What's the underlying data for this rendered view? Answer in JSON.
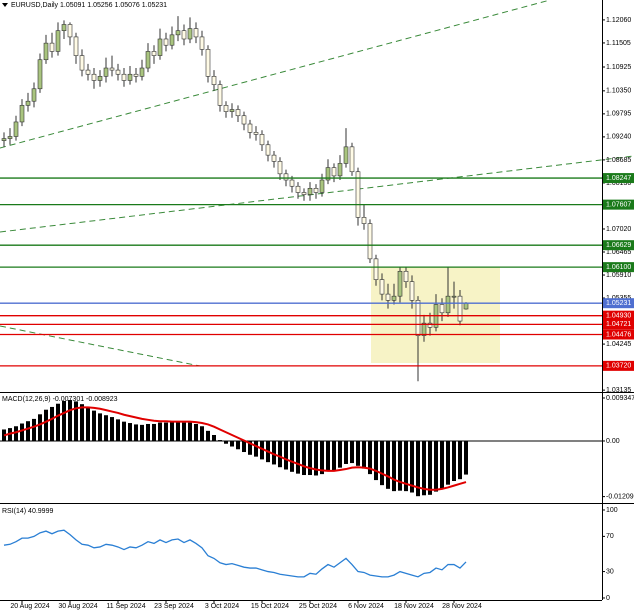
{
  "chart_data": [
    {
      "type": "candlestick",
      "title": "EURUSD,Daily  1.05091 1.05256 1.05076 1.05231",
      "categories": [
        null,
        null,
        null,
        "20 Aug 2024",
        null,
        null,
        null,
        null,
        null,
        null,
        null,
        "30 Aug 2024",
        null,
        null,
        null,
        null,
        null,
        null,
        null,
        "11 Sep 2024",
        null,
        null,
        null,
        null,
        null,
        null,
        null,
        "23 Sep 2024",
        null,
        null,
        null,
        null,
        null,
        null,
        null,
        "3 Oct 2024",
        null,
        null,
        null,
        null,
        null,
        null,
        null,
        "15 Oct 2024",
        null,
        null,
        null,
        null,
        null,
        null,
        null,
        "25 Oct 2024",
        null,
        null,
        null,
        null,
        null,
        null,
        null,
        "6 Nov 2024",
        null,
        null,
        null,
        null,
        null,
        null,
        null,
        "18 Nov 2024",
        null,
        null,
        null,
        null,
        null,
        null,
        null,
        "28 Nov 2024",
        null,
        null
      ],
      "open": [
        1.0915,
        1.092,
        1.0925,
        1.096,
        1.1,
        1.101,
        1.104,
        1.111,
        1.115,
        1.113,
        1.118,
        1.1195,
        1.1165,
        1.112,
        1.1085,
        1.1075,
        1.106,
        1.107,
        1.109,
        1.1085,
        1.1075,
        1.106,
        1.1075,
        1.107,
        1.109,
        1.113,
        1.112,
        1.116,
        1.1145,
        1.117,
        1.118,
        1.116,
        1.1185,
        1.1165,
        1.1135,
        1.107,
        1.105,
        1.1,
        1.0985,
        1.099,
        1.0975,
        1.0955,
        1.0935,
        1.093,
        1.0905,
        1.088,
        1.0865,
        1.0835,
        1.082,
        1.0805,
        1.079,
        1.0785,
        1.08,
        1.079,
        1.082,
        1.085,
        1.083,
        1.086,
        1.09,
        1.084,
        1.073,
        1.0715,
        1.063,
        1.058,
        1.0545,
        1.053,
        1.054,
        1.06,
        1.0575,
        1.053,
        1.0445,
        1.0475,
        1.0465,
        1.052,
        1.05,
        1.054,
        1.054,
        1.05091
      ],
      "high": [
        1.0935,
        1.0945,
        1.0975,
        1.1015,
        1.103,
        1.1055,
        1.1125,
        1.117,
        1.1175,
        1.12,
        1.1205,
        1.12,
        1.1175,
        1.1135,
        1.11,
        1.109,
        1.1085,
        1.1115,
        1.112,
        1.11,
        1.109,
        1.1095,
        1.109,
        1.111,
        1.115,
        1.1145,
        1.1185,
        1.1175,
        1.119,
        1.1215,
        1.1195,
        1.1212,
        1.12,
        1.118,
        1.1145,
        1.1085,
        1.106,
        1.101,
        1.1005,
        1.1,
        1.0985,
        1.0965,
        1.095,
        1.094,
        1.0915,
        1.089,
        1.0875,
        1.0845,
        1.083,
        1.0815,
        1.08,
        1.0815,
        1.081,
        1.0835,
        1.087,
        1.086,
        1.088,
        1.0945,
        1.091,
        1.085,
        1.076,
        1.0725,
        1.064,
        1.0595,
        1.057,
        1.057,
        1.061,
        1.061,
        1.059,
        1.054,
        1.0495,
        1.05,
        1.0545,
        1.0535,
        1.061,
        1.0575,
        1.0555,
        1.05256
      ],
      "low": [
        1.09,
        1.0905,
        1.0915,
        1.095,
        1.0985,
        1.0995,
        1.103,
        1.11,
        1.1115,
        1.112,
        1.116,
        1.1145,
        1.11,
        1.107,
        1.106,
        1.104,
        1.1045,
        1.1055,
        1.107,
        1.106,
        1.1045,
        1.105,
        1.1055,
        1.106,
        1.108,
        1.11,
        1.111,
        1.113,
        1.1135,
        1.1155,
        1.1145,
        1.115,
        1.115,
        1.112,
        1.1055,
        1.1035,
        1.0985,
        1.097,
        1.097,
        1.096,
        1.094,
        1.092,
        1.0915,
        1.089,
        1.0865,
        1.085,
        1.082,
        1.0805,
        1.079,
        1.0775,
        1.077,
        1.077,
        1.0775,
        1.078,
        1.081,
        1.0815,
        1.082,
        1.085,
        1.083,
        1.071,
        1.07,
        1.062,
        1.0565,
        1.053,
        1.051,
        1.052,
        1.0525,
        1.056,
        1.051,
        1.0335,
        1.043,
        1.0445,
        1.0455,
        1.048,
        1.049,
        1.051,
        1.047,
        1.05076
      ],
      "close": [
        1.092,
        1.0925,
        1.096,
        1.1,
        1.101,
        1.104,
        1.111,
        1.115,
        1.113,
        1.118,
        1.1195,
        1.1165,
        1.112,
        1.1085,
        1.1075,
        1.106,
        1.107,
        1.109,
        1.1085,
        1.1075,
        1.106,
        1.1075,
        1.107,
        1.109,
        1.113,
        1.112,
        1.116,
        1.1145,
        1.117,
        1.118,
        1.116,
        1.1185,
        1.1165,
        1.1135,
        1.107,
        1.105,
        1.1,
        1.0985,
        1.099,
        1.0975,
        1.0955,
        1.0935,
        1.093,
        1.0905,
        1.088,
        1.0865,
        1.0835,
        1.082,
        1.0805,
        1.079,
        1.0785,
        1.08,
        1.079,
        1.082,
        1.085,
        1.083,
        1.086,
        1.09,
        1.084,
        1.073,
        1.0715,
        1.063,
        1.058,
        1.0545,
        1.053,
        1.054,
        1.06,
        1.0575,
        1.053,
        1.0445,
        1.0475,
        1.0465,
        1.052,
        1.05,
        1.054,
        1.054,
        1.048,
        1.05231
      ],
      "up_color": "#a9c47f",
      "down_color": "#fffbe6",
      "outline_color": "#333333",
      "ylim": [
        1.0309,
        1.1254
      ],
      "yticks": [
        {
          "value": 1.03135,
          "label": "1.03135"
        },
        {
          "value": 1.04245,
          "label": "1.04245"
        },
        {
          "value": 1.05355,
          "label": "1.05355"
        },
        {
          "value": 1.0591,
          "label": "1.05910"
        },
        {
          "value": 1.06465,
          "label": "1.06465"
        },
        {
          "value": 1.0702,
          "label": "1.07020"
        },
        {
          "value": 1.0813,
          "label": "1.08130"
        },
        {
          "value": 1.08685,
          "label": "1.08685"
        },
        {
          "value": 1.0924,
          "label": "1.09240"
        },
        {
          "value": 1.09795,
          "label": "1.09795"
        },
        {
          "value": 1.1035,
          "label": "1.10350"
        },
        {
          "value": 1.10925,
          "label": "1.10925"
        },
        {
          "value": 1.11505,
          "label": "1.11505"
        },
        {
          "value": 1.1206,
          "label": "1.12060"
        }
      ],
      "levels": [
        {
          "value": 1.08247,
          "color": "#1a7a1a"
        },
        {
          "value": 1.07607,
          "color": "#1a7a1a"
        },
        {
          "value": 1.06629,
          "color": "#1a7a1a"
        },
        {
          "value": 1.061,
          "label": "1.06100",
          "color": "#1a7a1a"
        },
        {
          "value": 1.05231,
          "color": "#4f6fd0"
        },
        {
          "value": 1.0493,
          "label": "1.04930",
          "color": "#e00000"
        },
        {
          "value": 1.04721,
          "color": "#e00000"
        },
        {
          "value": 1.04476,
          "color": "#e00000"
        },
        {
          "value": 1.0372,
          "label": "1.03720",
          "color": "#e00000"
        }
      ]
    },
    {
      "type": "macd",
      "title": "MACD(12,26,9) -0.007301 -0.008923",
      "values": [
        0.0025,
        0.0028,
        0.0032,
        0.0038,
        0.0043,
        0.0048,
        0.0058,
        0.0068,
        0.0074,
        0.0081,
        0.0087,
        0.0089,
        0.0086,
        0.008,
        0.0073,
        0.0066,
        0.006,
        0.0056,
        0.0052,
        0.0047,
        0.0042,
        0.0039,
        0.0036,
        0.0035,
        0.0037,
        0.0037,
        0.004,
        0.004,
        0.0041,
        0.0042,
        0.004,
        0.004,
        0.0037,
        0.0032,
        0.0022,
        0.0013,
        0.0002,
        -0.0006,
        -0.0012,
        -0.0018,
        -0.0024,
        -0.003,
        -0.0034,
        -0.004,
        -0.0046,
        -0.0051,
        -0.0057,
        -0.0062,
        -0.0067,
        -0.0071,
        -0.0074,
        -0.0074,
        -0.0075,
        -0.0072,
        -0.0066,
        -0.0064,
        -0.0058,
        -0.005,
        -0.0048,
        -0.0054,
        -0.006,
        -0.0072,
        -0.0085,
        -0.0096,
        -0.0104,
        -0.0109,
        -0.0108,
        -0.0109,
        -0.0112,
        -0.012,
        -0.0118,
        -0.0117,
        -0.011,
        -0.0104,
        -0.0095,
        -0.0087,
        -0.0083,
        -0.007301
      ],
      "signal": [
        0.0012,
        0.0016,
        0.0019,
        0.0023,
        0.0027,
        0.0031,
        0.0036,
        0.0042,
        0.0048,
        0.0055,
        0.0061,
        0.0067,
        0.0071,
        0.0073,
        0.0073,
        0.0072,
        0.007,
        0.0067,
        0.0064,
        0.0061,
        0.0057,
        0.0054,
        0.0051,
        0.0048,
        0.0046,
        0.0044,
        0.0043,
        0.0043,
        0.0042,
        0.0042,
        0.0042,
        0.0042,
        0.0041,
        0.0039,
        0.0036,
        0.0031,
        0.0025,
        0.0019,
        0.0013,
        0.0007,
        0.0001,
        -0.0005,
        -0.0011,
        -0.0017,
        -0.0023,
        -0.0029,
        -0.0034,
        -0.004,
        -0.0045,
        -0.005,
        -0.0055,
        -0.0059,
        -0.0062,
        -0.0064,
        -0.0065,
        -0.0065,
        -0.0063,
        -0.0061,
        -0.0058,
        -0.0057,
        -0.0058,
        -0.006,
        -0.0065,
        -0.0071,
        -0.0077,
        -0.0084,
        -0.0089,
        -0.0093,
        -0.0097,
        -0.0101,
        -0.0104,
        -0.0106,
        -0.0106,
        -0.0104,
        -0.0101,
        -0.0097,
        -0.0093,
        -0.008923
      ],
      "color": "#000000",
      "signal_color": "#e00000",
      "ylim": [
        -0.01348,
        0.01043
      ],
      "yticks": [
        -0.01209,
        {
          "value": 0,
          "label": "0.00"
        },
        0.009347
      ]
    },
    {
      "type": "line",
      "title": "RSI(14) 40.9999",
      "values": [
        60,
        61,
        64,
        68,
        68,
        70,
        74,
        76,
        73,
        76,
        77,
        72,
        66,
        61,
        60,
        57,
        58,
        61,
        60,
        58,
        55,
        58,
        57,
        60,
        64,
        62,
        66,
        63,
        66,
        67,
        63,
        66,
        62,
        57,
        48,
        45,
        40,
        38,
        39,
        37,
        35,
        34,
        34,
        32,
        30,
        29,
        27,
        26,
        25,
        24,
        24,
        28,
        27,
        33,
        38,
        35,
        40,
        45,
        38,
        30,
        29,
        26,
        25,
        24,
        24,
        26,
        30,
        28,
        26,
        24,
        28,
        29,
        34,
        32,
        38,
        38,
        34,
        40.9999
      ],
      "color": "#2a7fd4",
      "ylim": [
        -2.3,
        106.8
      ],
      "yticks": [
        0,
        30,
        70,
        100
      ]
    }
  ]
}
